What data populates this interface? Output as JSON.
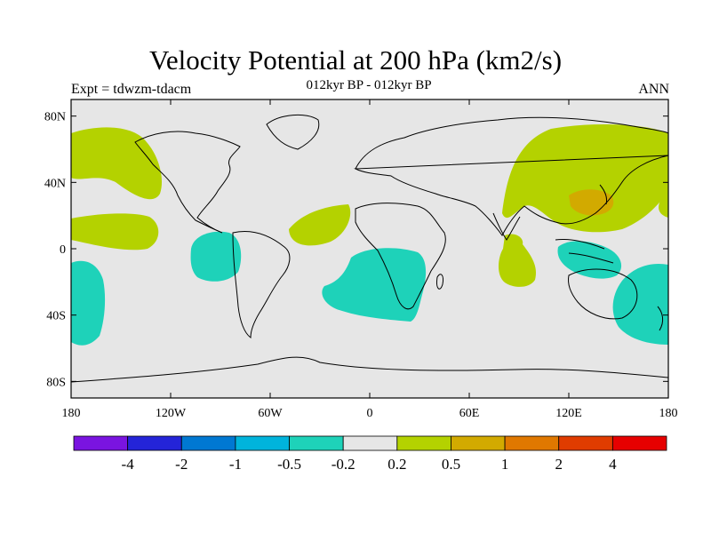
{
  "title": "Velocity Potential at 200 hPa (km2/s)",
  "subtitle": "012kyr BP - 012kyr BP",
  "left_label": "Expt = tdwzm-tdacm",
  "right_label": "ANN",
  "lat_ticks": [
    {
      "label": "80N",
      "lat": 80
    },
    {
      "label": "40N",
      "lat": 40
    },
    {
      "label": "0",
      "lat": 0
    },
    {
      "label": "40S",
      "lat": -40
    },
    {
      "label": "80S",
      "lat": -80
    }
  ],
  "lon_ticks": [
    {
      "label": "180",
      "lon": -180
    },
    {
      "label": "120W",
      "lon": -120
    },
    {
      "label": "60W",
      "lon": -60
    },
    {
      "label": "0",
      "lon": 0
    },
    {
      "label": "60E",
      "lon": 60
    },
    {
      "label": "120E",
      "lon": 120
    },
    {
      "label": "180",
      "lon": 180
    }
  ],
  "colorbar": {
    "colors": [
      "#7a14e0",
      "#2424d8",
      "#0078d2",
      "#00b4dc",
      "#1ed2b9",
      "#e6e6e6",
      "#b4d200",
      "#d2aa00",
      "#e07800",
      "#e03c00",
      "#e60000"
    ],
    "labels": [
      "-4",
      "-2",
      "-1",
      "-0.5",
      "-0.2",
      "0.2",
      "0.5",
      "1",
      "2",
      "4"
    ]
  },
  "colors": {
    "background": "#e6e6e6",
    "positive": "#b4d200",
    "negative": "#1ed2b9",
    "strong_positive": "#d2aa00",
    "coast": "#000000"
  }
}
